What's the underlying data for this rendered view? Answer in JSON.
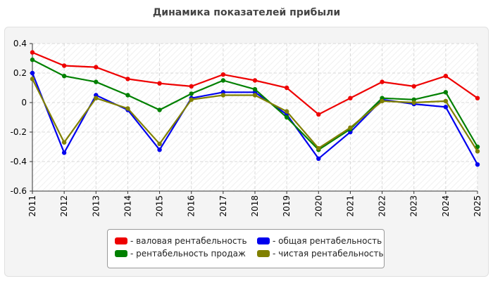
{
  "chart_data": {
    "type": "line",
    "title": "Динамика показателей прибыли",
    "xlabel": "",
    "ylabel": "",
    "categories": [
      "2011",
      "2012",
      "2013",
      "2014",
      "2015",
      "2016",
      "2017",
      "2018",
      "2019",
      "2020",
      "2021",
      "2022",
      "2023",
      "2024",
      "2025"
    ],
    "ylim": [
      -0.6,
      0.4
    ],
    "yticks": [
      0.4,
      0.2,
      0,
      -0.2,
      -0.4,
      -0.6
    ],
    "ytick_labels": [
      "0.4",
      "0.2",
      "0",
      "-0.2",
      "-0.4",
      "-0.6"
    ],
    "grid": true,
    "legend_position": "bottom",
    "series": [
      {
        "name": "- валовая рентабельность",
        "color": "#ee0000",
        "values": [
          0.34,
          0.25,
          0.24,
          0.16,
          0.13,
          0.11,
          0.19,
          0.15,
          0.1,
          -0.08,
          0.03,
          0.14,
          0.11,
          0.18,
          0.03
        ]
      },
      {
        "name": "- общая рентабельность",
        "color": "#0000ee",
        "values": [
          0.2,
          -0.34,
          0.05,
          -0.05,
          -0.32,
          0.03,
          0.07,
          0.07,
          -0.08,
          -0.38,
          -0.2,
          0.02,
          -0.01,
          -0.03,
          -0.42
        ]
      },
      {
        "name": "- рентабельность продаж",
        "color": "#008000",
        "values": [
          0.29,
          0.18,
          0.14,
          0.05,
          -0.05,
          0.06,
          0.15,
          0.09,
          -0.1,
          -0.32,
          -0.18,
          0.03,
          0.02,
          0.07,
          -0.3
        ]
      },
      {
        "name": "- чистая рентабельность",
        "color": "#808000",
        "values": [
          0.16,
          -0.27,
          0.03,
          -0.04,
          -0.28,
          0.02,
          0.05,
          0.05,
          -0.06,
          -0.31,
          -0.17,
          0.01,
          0.0,
          0.01,
          -0.33
        ]
      }
    ]
  }
}
